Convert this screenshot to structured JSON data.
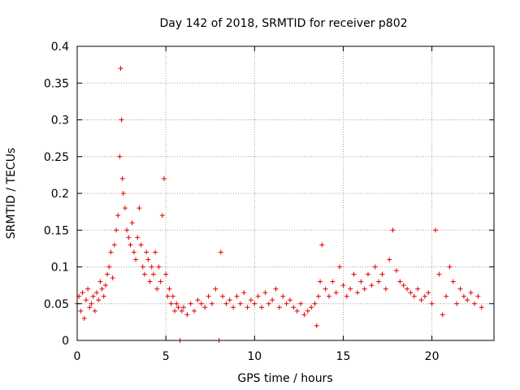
{
  "chart_data": {
    "type": "scatter",
    "title": "Day 142 of 2018, SRMTID for receiver p802",
    "xlabel": "GPS time / hours",
    "ylabel": "SRMTID / TECUs",
    "xlim": [
      0,
      23.5
    ],
    "ylim": [
      0,
      0.4
    ],
    "xticks": [
      0,
      5,
      10,
      15,
      20
    ],
    "yticks": [
      0,
      0.05,
      0.1,
      0.15,
      0.2,
      0.25,
      0.3,
      0.35,
      0.4
    ],
    "grid": true,
    "marker": "+",
    "color": "#e00000",
    "series": [
      {
        "name": "p802",
        "x": [
          0.0,
          0.1,
          0.2,
          0.3,
          0.4,
          0.5,
          0.6,
          0.7,
          0.8,
          0.9,
          1.0,
          1.1,
          1.2,
          1.3,
          1.4,
          1.5,
          1.6,
          1.7,
          1.8,
          1.9,
          2.0,
          2.1,
          2.2,
          2.3,
          2.4,
          2.45,
          2.5,
          2.55,
          2.6,
          2.7,
          2.8,
          2.9,
          3.0,
          3.1,
          3.2,
          3.3,
          3.4,
          3.5,
          3.6,
          3.7,
          3.8,
          3.9,
          4.0,
          4.1,
          4.2,
          4.3,
          4.4,
          4.5,
          4.6,
          4.7,
          4.8,
          4.9,
          5.0,
          5.1,
          5.2,
          5.3,
          5.4,
          5.5,
          5.6,
          5.7,
          5.8,
          5.9,
          6.0,
          6.2,
          6.4,
          6.6,
          6.8,
          7.0,
          7.2,
          7.4,
          7.6,
          7.8,
          8.0,
          8.1,
          8.2,
          8.4,
          8.6,
          8.8,
          9.0,
          9.2,
          9.4,
          9.6,
          9.8,
          10.0,
          10.2,
          10.4,
          10.6,
          10.8,
          11.0,
          11.2,
          11.4,
          11.6,
          11.8,
          12.0,
          12.2,
          12.4,
          12.6,
          12.8,
          13.0,
          13.2,
          13.4,
          13.5,
          13.6,
          13.7,
          13.8,
          14.0,
          14.2,
          14.4,
          14.6,
          14.8,
          15.0,
          15.2,
          15.4,
          15.6,
          15.8,
          16.0,
          16.2,
          16.4,
          16.6,
          16.8,
          17.0,
          17.2,
          17.4,
          17.6,
          17.8,
          18.0,
          18.2,
          18.4,
          18.6,
          18.8,
          19.0,
          19.2,
          19.4,
          19.6,
          19.8,
          20.0,
          20.2,
          20.4,
          20.6,
          20.8,
          21.0,
          21.2,
          21.4,
          21.6,
          21.8,
          22.0,
          22.2,
          22.4,
          22.6,
          22.8
        ],
        "y": [
          0.05,
          0.06,
          0.04,
          0.065,
          0.03,
          0.055,
          0.07,
          0.045,
          0.05,
          0.06,
          0.04,
          0.065,
          0.055,
          0.08,
          0.07,
          0.06,
          0.075,
          0.09,
          0.1,
          0.12,
          0.085,
          0.13,
          0.15,
          0.17,
          0.25,
          0.37,
          0.3,
          0.22,
          0.2,
          0.18,
          0.15,
          0.14,
          0.13,
          0.16,
          0.12,
          0.11,
          0.14,
          0.18,
          0.13,
          0.1,
          0.09,
          0.12,
          0.11,
          0.08,
          0.1,
          0.09,
          0.12,
          0.07,
          0.1,
          0.08,
          0.17,
          0.22,
          0.09,
          0.06,
          0.07,
          0.05,
          0.06,
          0.04,
          0.05,
          0.045,
          0.0,
          0.04,
          0.045,
          0.035,
          0.05,
          0.04,
          0.055,
          0.05,
          0.045,
          0.06,
          0.05,
          0.07,
          0.0,
          0.12,
          0.06,
          0.05,
          0.055,
          0.045,
          0.06,
          0.05,
          0.065,
          0.045,
          0.055,
          0.05,
          0.06,
          0.045,
          0.065,
          0.05,
          0.055,
          0.07,
          0.045,
          0.06,
          0.05,
          0.055,
          0.045,
          0.04,
          0.05,
          0.035,
          0.04,
          0.045,
          0.05,
          0.02,
          0.06,
          0.08,
          0.13,
          0.07,
          0.06,
          0.08,
          0.065,
          0.1,
          0.075,
          0.06,
          0.07,
          0.09,
          0.065,
          0.08,
          0.07,
          0.09,
          0.075,
          0.1,
          0.08,
          0.09,
          0.07,
          0.11,
          0.15,
          0.095,
          0.08,
          0.075,
          0.07,
          0.065,
          0.06,
          0.07,
          0.055,
          0.06,
          0.065,
          0.05,
          0.15,
          0.09,
          0.035,
          0.06,
          0.1,
          0.08,
          0.05,
          0.07,
          0.06,
          0.055,
          0.065,
          0.05,
          0.06,
          0.045
        ]
      }
    ]
  }
}
